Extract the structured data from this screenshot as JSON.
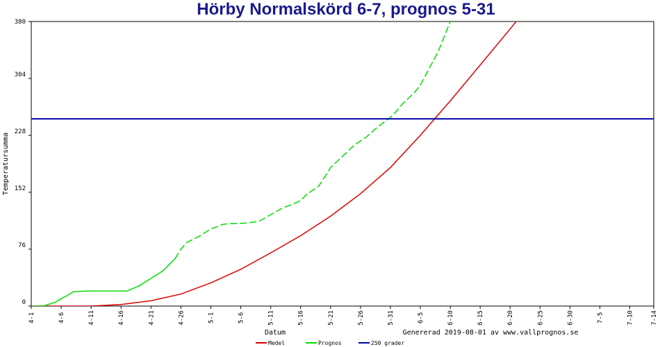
{
  "chart_data": {
    "type": "line",
    "title": "Hörby Normalskörd 6-7, prognos 5-31",
    "xlabel": "Datum",
    "ylabel": "Temperatursumma",
    "footer": "Genererad 2019-08-01 av www.vallprognos.se",
    "x_tick_labels": [
      "4-1",
      "4-6",
      "4-11",
      "4-16",
      "4-21",
      "4-26",
      "5-1",
      "5-6",
      "5-11",
      "5-16",
      "5-21",
      "5-26",
      "5-31",
      "6-5",
      "6-10",
      "6-15",
      "6-20",
      "6-25",
      "6-30",
      "7-5",
      "7-10",
      "7-14"
    ],
    "x_tick_days": [
      0,
      5,
      10,
      15,
      20,
      25,
      30,
      35,
      40,
      45,
      50,
      55,
      60,
      65,
      70,
      75,
      80,
      85,
      90,
      95,
      100,
      104
    ],
    "xlim": [
      0,
      104
    ],
    "y_ticks": [
      0,
      76,
      152,
      228,
      304,
      380
    ],
    "ylim": [
      0,
      380
    ],
    "grid": false,
    "legend_placement": "bottom",
    "series": [
      {
        "name": "Medel",
        "color": "#dd0000",
        "style": "solid",
        "x": [
          0,
          10,
          15,
          20,
          25,
          30,
          35,
          40,
          45,
          50,
          55,
          60,
          65,
          70,
          75,
          80,
          85
        ],
        "y": [
          0,
          0,
          2,
          7,
          16,
          31,
          49,
          71,
          94,
          120,
          150,
          185,
          228,
          274,
          322,
          370,
          420
        ]
      },
      {
        "name": "Prognos",
        "color": "#00dd00",
        "style": "mixed",
        "dash_from_x": 24,
        "x": [
          0,
          2,
          4,
          5,
          6,
          7,
          9,
          10,
          12,
          15,
          16,
          18,
          20,
          22,
          24,
          25,
          26,
          28,
          30,
          32,
          33,
          34,
          36,
          38,
          40,
          42,
          44,
          45,
          46,
          48,
          49,
          50,
          52,
          54,
          56,
          57,
          58,
          60,
          61,
          62,
          64,
          65,
          66,
          68,
          70
        ],
        "y": [
          0,
          0,
          5,
          10,
          14,
          19,
          20,
          20,
          20,
          20,
          20,
          27,
          37,
          47,
          63,
          76,
          85,
          93,
          103,
          109,
          110,
          110,
          111,
          113,
          122,
          131,
          137,
          141,
          149,
          160,
          172,
          185,
          200,
          215,
          226,
          233,
          240,
          252,
          260,
          270,
          285,
          295,
          310,
          340,
          380
        ]
      },
      {
        "name": "250 grader",
        "color": "#0000aa",
        "style": "solid",
        "x": [
          0,
          104
        ],
        "y": [
          250,
          250
        ]
      }
    ]
  }
}
